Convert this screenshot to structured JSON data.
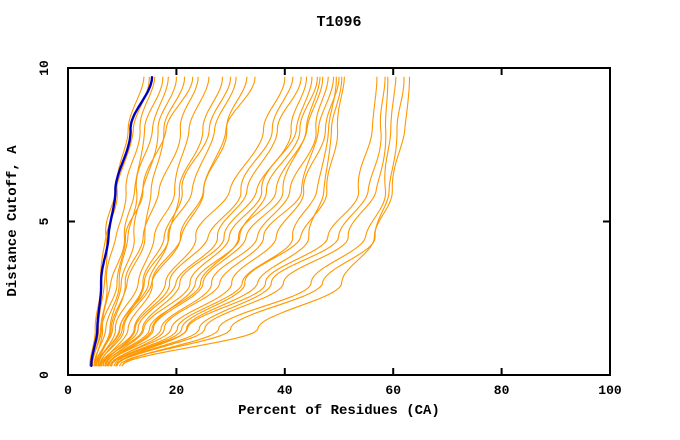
{
  "chart_data": {
    "type": "line",
    "title": "T1096",
    "xlabel": "Percent of Residues (CA)",
    "ylabel": "Distance Cutoff, A",
    "xlim": [
      0,
      100
    ],
    "ylim": [
      0,
      10
    ],
    "xticks": [
      0,
      20,
      40,
      60,
      80,
      100
    ],
    "yticks": [
      0,
      5,
      10
    ],
    "grid": false,
    "legend": "none",
    "colors": {
      "model_line": "#ff9800",
      "highlight_line": "#0000c0",
      "axis": "#000000",
      "background": "#ffffff"
    },
    "cutoff_samples": [
      0.3,
      1.5,
      3,
      4.5,
      6,
      8,
      9.7
    ],
    "model_curves": [
      [
        4.2,
        5.5,
        6.5,
        7.5,
        9,
        12,
        15
      ],
      [
        4.5,
        6,
        7.5,
        9,
        10.5,
        13,
        16
      ],
      [
        5,
        6.5,
        8,
        10,
        12,
        14.5,
        17.5
      ],
      [
        4.8,
        7,
        9,
        11,
        13,
        15.5,
        18.5
      ],
      [
        5.2,
        7.5,
        10,
        12.5,
        14,
        16.5,
        20
      ],
      [
        4,
        5.2,
        6.2,
        7.2,
        8.5,
        11,
        14
      ],
      [
        5.5,
        8,
        11,
        13.5,
        15.5,
        18,
        21.5
      ],
      [
        4.4,
        6.2,
        8.5,
        11,
        14,
        18,
        23
      ],
      [
        5,
        8,
        11,
        14,
        17,
        20.5,
        24
      ],
      [
        5.5,
        9,
        13,
        16,
        19,
        22.5,
        26
      ],
      [
        6,
        10,
        14,
        18,
        21,
        25,
        28.5
      ],
      [
        5.2,
        9.5,
        14.5,
        19,
        23,
        27,
        31
      ],
      [
        6.5,
        11,
        16,
        21,
        25,
        29,
        33
      ],
      [
        5.8,
        10.5,
        15.5,
        20.5,
        24.5,
        29.5,
        34.5
      ],
      [
        5.6,
        9.5,
        13.5,
        17.5,
        21.5,
        26,
        30
      ],
      [
        6,
        12,
        18,
        24,
        30,
        36,
        40
      ],
      [
        6.8,
        12.5,
        19,
        26,
        31.5,
        37.5,
        41.5
      ],
      [
        6.5,
        13,
        20,
        27,
        33,
        39,
        43
      ],
      [
        7,
        14,
        22,
        30,
        36,
        42,
        45
      ],
      [
        6.2,
        13.5,
        21,
        29,
        35,
        41,
        44
      ],
      [
        7.5,
        16,
        25,
        33,
        39,
        44,
        46.5
      ],
      [
        7.4,
        15.5,
        23.5,
        31,
        37,
        43,
        46
      ],
      [
        6.8,
        15,
        24,
        32,
        38.5,
        44,
        47
      ],
      [
        7.2,
        17,
        27,
        35,
        41,
        45.5,
        48
      ],
      [
        8,
        18,
        28,
        36,
        42.5,
        46.5,
        49
      ],
      [
        7.8,
        19,
        30,
        38,
        44,
        47.5,
        50
      ],
      [
        8,
        20,
        32,
        42,
        46,
        48,
        49.5
      ],
      [
        8.5,
        21,
        33,
        43,
        47.5,
        49.5,
        51
      ],
      [
        9,
        22,
        35,
        44,
        47,
        49,
        50.5
      ],
      [
        8,
        22,
        36,
        48,
        54,
        56,
        57
      ],
      [
        9,
        25,
        40,
        52,
        57,
        58.5,
        59
      ],
      [
        10,
        28,
        45,
        55,
        58,
        59.5,
        60.5
      ],
      [
        9.5,
        30,
        47,
        56,
        59.5,
        61,
        62
      ],
      [
        10,
        35,
        50,
        57,
        60,
        62,
        63
      ],
      [
        8.8,
        24,
        38,
        50,
        55.5,
        57.5,
        58.5
      ]
    ],
    "highlight_curve": [
      4.3,
      5.4,
      6.3,
      7.4,
      8.7,
      11.5,
      15.5
    ]
  }
}
